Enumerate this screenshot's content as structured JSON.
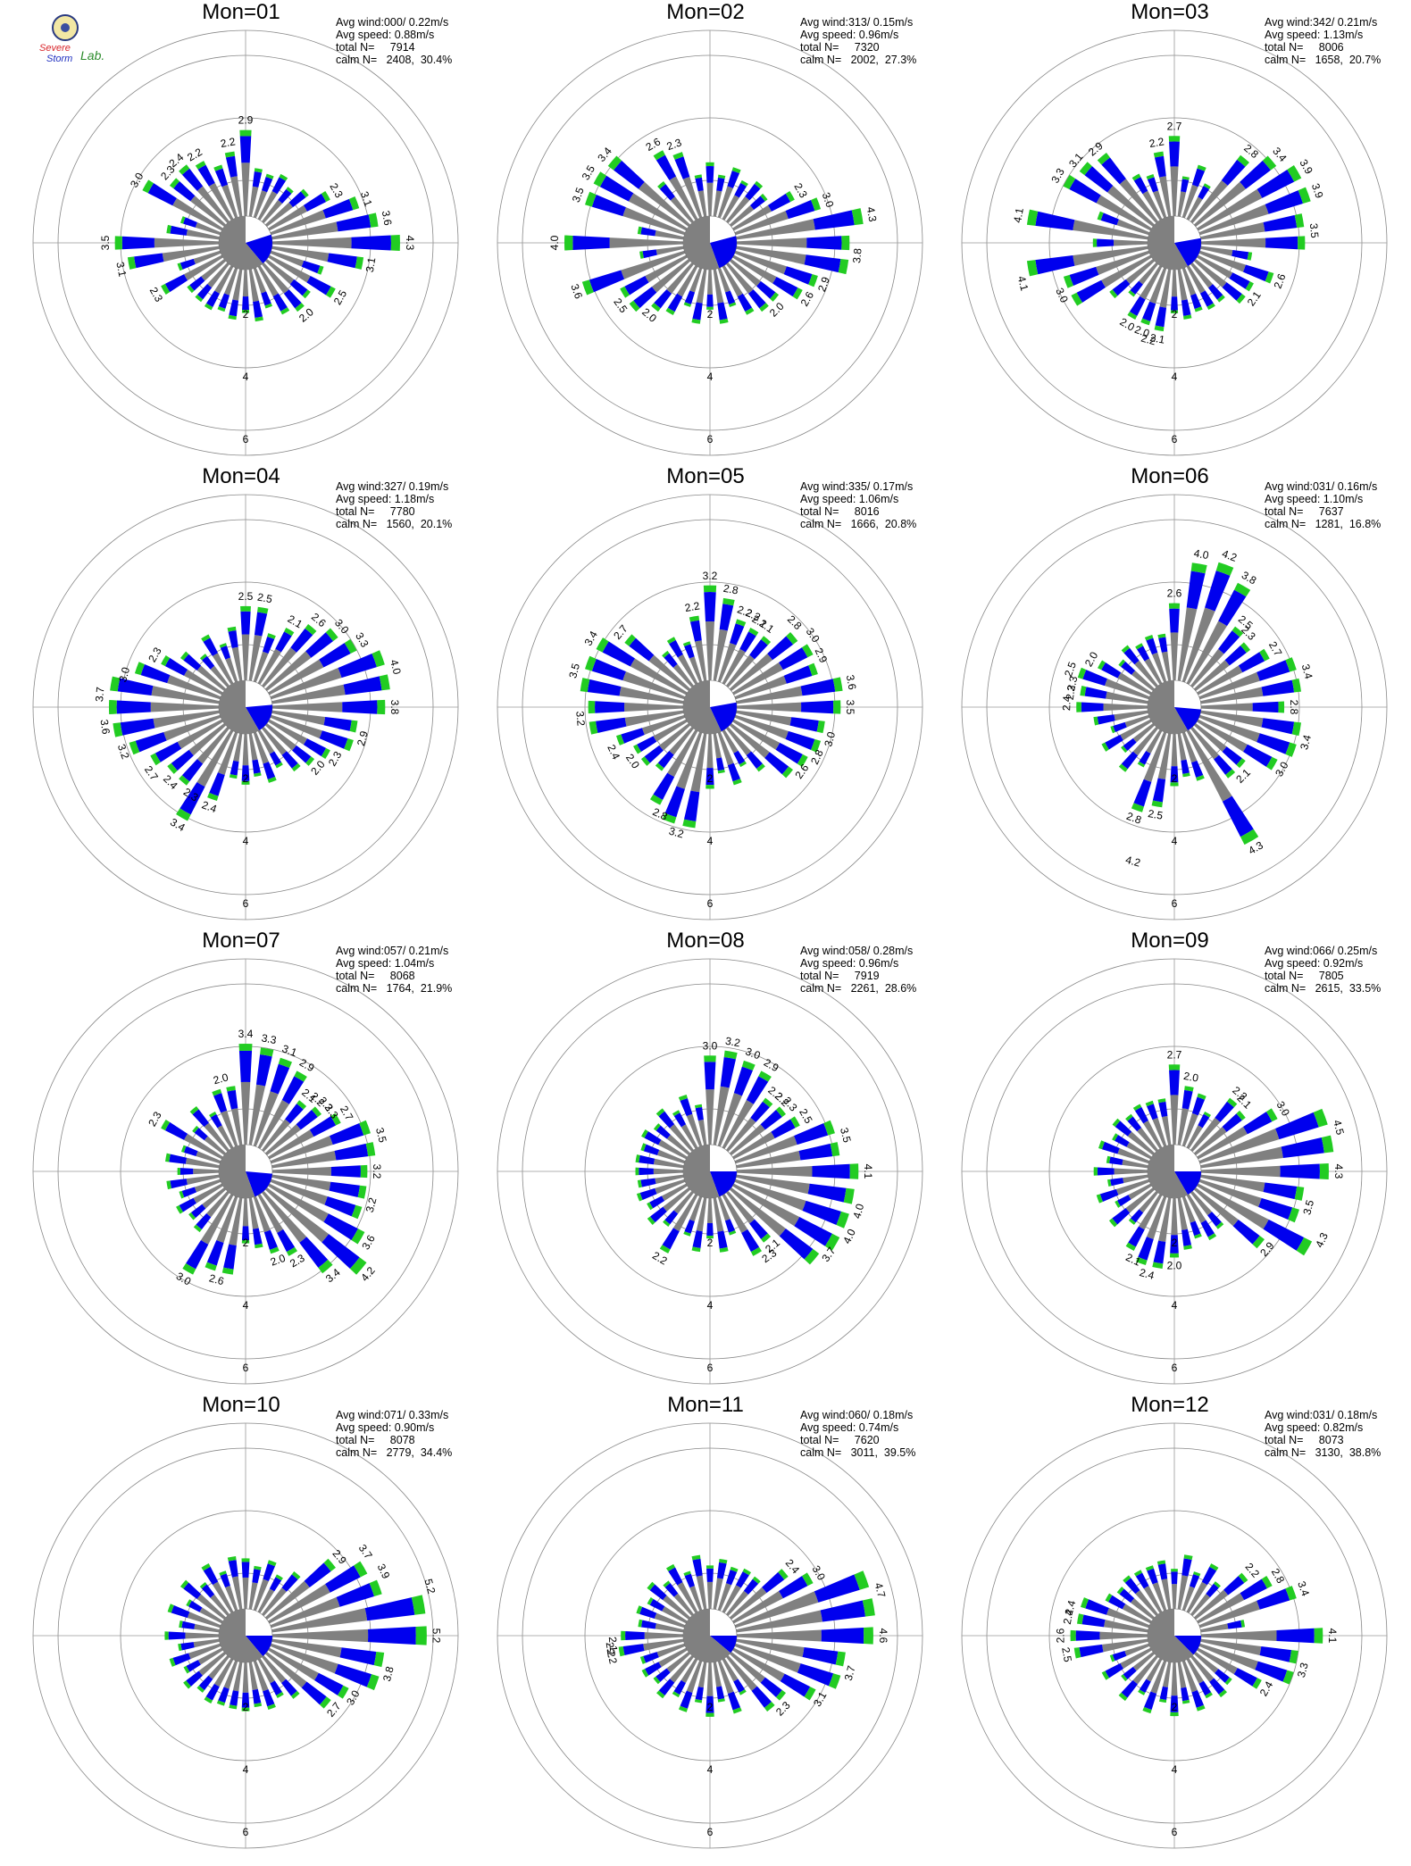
{
  "logo": {
    "name": "severe-storm-lab-logo",
    "line1": "Severe",
    "line2": "Storm",
    "line3": "Lab.",
    "colors": {
      "red": "#d8252a",
      "blue": "#2030c0",
      "green": "#2b8b2b",
      "seal": "#f2e7a4"
    }
  },
  "colors": {
    "gray": "#808080",
    "blue": "#0000ee",
    "green": "#22cc22",
    "calm_gray": "#808080",
    "calm_blue": "#0000ee",
    "ring": "#888888",
    "axis": "#999999"
  },
  "chart_data": [
    {
      "type": "polar-bar",
      "title": "Mon=01",
      "stats": [
        "Avg wind:000/ 0.22m/s",
        "Avg speed: 0.88m/s",
        "total N=     7914",
        "calm N=   2408,  30.4%"
      ],
      "r_ticks": [
        2,
        4,
        6
      ],
      "r_max": 6.8,
      "calm_angles": [
        0,
        72,
        140,
        360
      ],
      "top_labels": [
        [
          0,
          2.9
        ],
        [
          350,
          2.2
        ],
        [
          330,
          2.2
        ],
        [
          320,
          2.4
        ],
        [
          312,
          2.3
        ],
        [
          300,
          3.0
        ],
        [
          270,
          3.5
        ],
        [
          258,
          3.1
        ],
        [
          240,
          2.3
        ],
        [
          60,
          2.3
        ],
        [
          70,
          3.1
        ],
        [
          80,
          3.6
        ],
        [
          90,
          4.3
        ],
        [
          100,
          3.1
        ],
        [
          120,
          2.5
        ],
        [
          140,
          2.0
        ]
      ]
    },
    {
      "type": "polar-bar",
      "title": "Mon=02",
      "stats": [
        "Avg wind:313/ 0.15m/s",
        "Avg speed: 0.96m/s",
        "total N=     7320",
        "calm N=   2002,  27.3%"
      ],
      "r_ticks": [
        2,
        4,
        6
      ],
      "r_max": 6.8,
      "calm_angles": [
        0,
        75,
        160,
        360
      ],
      "top_labels": [
        [
          340,
          2.3
        ],
        [
          330,
          2.6
        ],
        [
          310,
          3.4
        ],
        [
          300,
          3.5
        ],
        [
          290,
          3.5
        ],
        [
          270,
          4.0
        ],
        [
          250,
          3.6
        ],
        [
          235,
          2.5
        ],
        [
          220,
          2.0
        ],
        [
          60,
          2.3
        ],
        [
          70,
          3.0
        ],
        [
          80,
          4.3
        ],
        [
          95,
          3.8
        ],
        [
          110,
          2.9
        ],
        [
          120,
          2.6
        ],
        [
          135,
          2.0
        ]
      ]
    },
    {
      "type": "polar-bar",
      "title": "Mon=03",
      "stats": [
        "Avg wind:342/ 0.21m/s",
        "Avg speed: 1.13m/s",
        "total N=     8006",
        "calm N=   1658,  20.7%"
      ],
      "r_ticks": [
        2,
        4,
        6
      ],
      "r_max": 6.8,
      "calm_angles": [
        0,
        80,
        150,
        360
      ],
      "top_labels": [
        [
          0,
          2.7
        ],
        [
          350,
          2.2
        ],
        [
          320,
          2.9
        ],
        [
          310,
          3.1
        ],
        [
          300,
          3.3
        ],
        [
          280,
          4.1
        ],
        [
          255,
          4.1
        ],
        [
          245,
          3.0
        ],
        [
          210,
          2.0
        ],
        [
          200,
          2.0
        ],
        [
          195,
          2.2
        ],
        [
          190,
          2.1
        ],
        [
          40,
          2.8
        ],
        [
          50,
          3.4
        ],
        [
          60,
          3.9
        ],
        [
          70,
          3.9
        ],
        [
          85,
          3.5
        ],
        [
          110,
          2.6
        ],
        [
          125,
          2.1
        ]
      ]
    },
    {
      "type": "polar-bar",
      "title": "Mon=04",
      "stats": [
        "Avg wind:327/ 0.19m/s",
        "Avg speed: 1.18m/s",
        "total N=     7780",
        "calm N=   1560,  20.1%"
      ],
      "r_ticks": [
        2,
        4,
        6
      ],
      "r_max": 6.8,
      "calm_angles": [
        0,
        85,
        150,
        360
      ],
      "top_labels": [
        [
          0,
          2.5
        ],
        [
          10,
          2.5
        ],
        [
          30,
          2.1
        ],
        [
          40,
          2.6
        ],
        [
          50,
          3.0
        ],
        [
          60,
          3.3
        ],
        [
          75,
          4.0
        ],
        [
          90,
          3.8
        ],
        [
          105,
          2.9
        ],
        [
          120,
          2.3
        ],
        [
          130,
          2.0
        ],
        [
          300,
          2.3
        ],
        [
          285,
          3.0
        ],
        [
          275,
          3.7
        ],
        [
          262,
          3.6
        ],
        [
          250,
          3.2
        ],
        [
          235,
          2.7
        ],
        [
          225,
          2.4
        ],
        [
          212,
          2.3
        ],
        [
          200,
          2.4
        ],
        [
          210,
          3.4
        ]
      ]
    },
    {
      "type": "polar-bar",
      "title": "Mon=05",
      "stats": [
        "Avg wind:335/ 0.17m/s",
        "Avg speed: 1.06m/s",
        "total N=     8016",
        "calm N=   1666,  20.8%"
      ],
      "r_ticks": [
        2,
        4,
        6
      ],
      "r_max": 6.8,
      "calm_angles": [
        0,
        80,
        155,
        360
      ],
      "top_labels": [
        [
          0,
          3.2
        ],
        [
          10,
          2.8
        ],
        [
          350,
          2.2
        ],
        [
          20,
          2.2
        ],
        [
          25,
          2.2
        ],
        [
          30,
          2.1
        ],
        [
          35,
          2.1
        ],
        [
          45,
          2.8
        ],
        [
          55,
          3.0
        ],
        [
          65,
          2.9
        ],
        [
          80,
          3.6
        ],
        [
          90,
          3.5
        ],
        [
          105,
          3.0
        ],
        [
          115,
          2.8
        ],
        [
          125,
          2.6
        ],
        [
          310,
          2.7
        ],
        [
          300,
          3.4
        ],
        [
          285,
          3.5
        ],
        [
          265,
          3.2
        ],
        [
          245,
          2.4
        ],
        [
          235,
          2.0
        ],
        [
          205,
          2.8
        ],
        [
          195,
          3.2
        ]
      ]
    },
    {
      "type": "polar-bar",
      "title": "Mon=06",
      "stats": [
        "Avg wind:031/ 0.16m/s",
        "Avg speed: 1.10m/s",
        "total N=     7637",
        "calm N=   1281,  16.8%"
      ],
      "r_ticks": [
        2,
        4,
        6
      ],
      "r_max": 6.8,
      "calm_angles": [
        0,
        95,
        150,
        360
      ],
      "top_labels": [
        [
          10,
          4.0
        ],
        [
          20,
          4.2
        ],
        [
          30,
          3.8
        ],
        [
          0,
          2.6
        ],
        [
          40,
          2.5
        ],
        [
          45,
          2.3
        ],
        [
          60,
          2.7
        ],
        [
          75,
          3.4
        ],
        [
          90,
          2.8
        ],
        [
          105,
          3.4
        ],
        [
          120,
          3.0
        ],
        [
          135,
          2.1
        ],
        [
          150,
          4.3
        ],
        [
          190,
          2.5
        ],
        [
          200,
          2.8
        ],
        [
          195,
          4.2
        ],
        [
          300,
          2.0
        ],
        [
          290,
          2.5
        ],
        [
          283,
          2.3
        ],
        [
          278,
          2.3
        ],
        [
          272,
          2.4
        ]
      ]
    },
    {
      "type": "polar-bar",
      "title": "Mon=07",
      "stats": [
        "Avg wind:057/ 0.21m/s",
        "Avg speed: 1.04m/s",
        "total N=     8068",
        "calm N=   1764,  21.9%"
      ],
      "r_ticks": [
        2,
        4,
        6
      ],
      "r_max": 6.8,
      "calm_angles": [
        0,
        95,
        160,
        360
      ],
      "top_labels": [
        [
          0,
          3.4
        ],
        [
          10,
          3.3
        ],
        [
          20,
          3.1
        ],
        [
          30,
          2.9
        ],
        [
          40,
          2.1
        ],
        [
          45,
          2.2
        ],
        [
          50,
          2.3
        ],
        [
          55,
          2.3
        ],
        [
          60,
          2.7
        ],
        [
          75,
          3.5
        ],
        [
          90,
          3.2
        ],
        [
          105,
          3.2
        ],
        [
          120,
          3.6
        ],
        [
          130,
          4.2
        ],
        [
          140,
          3.4
        ],
        [
          150,
          2.3
        ],
        [
          160,
          2.0
        ],
        [
          345,
          2.0
        ],
        [
          300,
          2.3
        ],
        [
          195,
          2.6
        ],
        [
          210,
          3.0
        ]
      ]
    },
    {
      "type": "polar-bar",
      "title": "Mon=08",
      "stats": [
        "Avg wind:058/ 0.28m/s",
        "Avg speed: 0.96m/s",
        "total N=     7919",
        "calm N=   2261,  28.6%"
      ],
      "r_ticks": [
        2,
        4,
        6
      ],
      "r_max": 6.8,
      "calm_angles": [
        0,
        90,
        160,
        360
      ],
      "top_labels": [
        [
          0,
          3.0
        ],
        [
          10,
          3.2
        ],
        [
          20,
          3.0
        ],
        [
          30,
          2.9
        ],
        [
          40,
          2.2
        ],
        [
          45,
          2.2
        ],
        [
          50,
          2.3
        ],
        [
          60,
          2.5
        ],
        [
          75,
          3.5
        ],
        [
          90,
          4.1
        ],
        [
          105,
          4.0
        ],
        [
          115,
          4.0
        ],
        [
          125,
          3.7
        ],
        [
          140,
          2.1
        ],
        [
          145,
          2.3
        ],
        [
          210,
          2.2
        ]
      ]
    },
    {
      "type": "polar-bar",
      "title": "Mon=09",
      "stats": [
        "Avg wind:066/ 0.25m/s",
        "Avg speed: 0.92m/s",
        "total N=     7805",
        "calm N=   2615,  33.5%"
      ],
      "r_ticks": [
        2,
        4,
        6
      ],
      "r_max": 6.8,
      "calm_angles": [
        0,
        90,
        150,
        360
      ],
      "top_labels": [
        [
          0,
          2.7
        ],
        [
          10,
          2.0
        ],
        [
          40,
          2.2
        ],
        [
          45,
          2.1
        ],
        [
          60,
          3.0
        ],
        [
          75,
          4.5
        ],
        [
          90,
          4.3
        ],
        [
          105,
          3.5
        ],
        [
          115,
          4.3
        ],
        [
          130,
          2.9
        ],
        [
          195,
          2.4
        ],
        [
          205,
          2.1
        ],
        [
          180,
          2.0
        ]
      ]
    },
    {
      "type": "polar-bar",
      "title": "Mon=10",
      "stats": [
        "Avg wind:071/ 0.33m/s",
        "Avg speed: 0.90m/s",
        "total N=     8078",
        "calm N=   2779,  34.4%"
      ],
      "r_ticks": [
        2,
        4,
        6
      ],
      "r_max": 6.8,
      "calm_angles": [
        0,
        90,
        140,
        360
      ],
      "top_labels": [
        [
          50,
          2.9
        ],
        [
          55,
          3.7
        ],
        [
          65,
          3.9
        ],
        [
          75,
          5.2
        ],
        [
          90,
          5.2
        ],
        [
          105,
          3.8
        ],
        [
          120,
          3.0
        ],
        [
          130,
          2.7
        ]
      ]
    },
    {
      "type": "polar-bar",
      "title": "Mon=11",
      "stats": [
        "Avg wind:060/ 0.18m/s",
        "Avg speed: 0.74m/s",
        "total N=     7620",
        "calm N=   3011,  39.5%"
      ],
      "r_ticks": [
        2,
        4,
        6
      ],
      "r_max": 6.8,
      "calm_angles": [
        0,
        90,
        130,
        360
      ],
      "top_labels": [
        [
          50,
          2.4
        ],
        [
          60,
          3.0
        ],
        [
          75,
          4.7
        ],
        [
          90,
          4.6
        ],
        [
          105,
          3.7
        ],
        [
          120,
          3.1
        ],
        [
          135,
          2.3
        ],
        [
          265,
          2.1
        ],
        [
          262,
          2.2
        ],
        [
          258,
          2.2
        ]
      ]
    },
    {
      "type": "polar-bar",
      "title": "Mon=12",
      "stats": [
        "Avg wind:031/ 0.18m/s",
        "Avg speed: 0.82m/s",
        "total N=     8073",
        "calm N=   3130,  38.8%"
      ],
      "r_ticks": [
        2,
        4,
        6
      ],
      "r_max": 6.8,
      "calm_angles": [
        0,
        90,
        135,
        360
      ],
      "top_labels": [
        [
          50,
          2.2
        ],
        [
          60,
          2.8
        ],
        [
          70,
          3.4
        ],
        [
          90,
          4.1
        ],
        [
          105,
          3.3
        ],
        [
          120,
          2.4
        ],
        [
          285,
          2.4
        ],
        [
          280,
          2.4
        ],
        [
          270,
          2.6
        ],
        [
          260,
          2.5
        ]
      ]
    }
  ]
}
